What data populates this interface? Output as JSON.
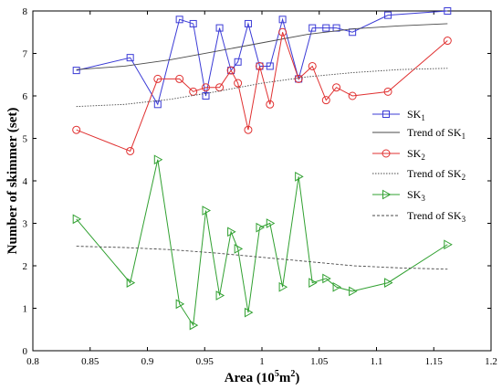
{
  "chart_data": {
    "type": "line",
    "xlabel": "Area (10",
    "xlabel_sup": "5",
    "xlabel_unit": "m",
    "xlabel_unit_sup": "2",
    "xlabel_close": ")",
    "ylabel": "Number of skimmer (set)",
    "xlim": [
      0.8,
      1.2
    ],
    "ylim": [
      0,
      8
    ],
    "xticks": [
      "0.8",
      "0.85",
      "0.9",
      "0.95",
      "1",
      "1.05",
      "1.1",
      "1.15",
      "1.2"
    ],
    "yticks": [
      "0",
      "1",
      "2",
      "3",
      "4",
      "5",
      "6",
      "7",
      "8"
    ],
    "legend_position": "right",
    "series": [
      {
        "name": "SK",
        "sub": "1",
        "color": "#3b3bd6",
        "marker": "square",
        "kind": "data",
        "x": [
          0.838,
          0.885,
          0.909,
          0.928,
          0.94,
          0.951,
          0.963,
          0.973,
          0.979,
          0.988,
          0.998,
          1.007,
          1.018,
          1.032,
          1.044,
          1.056,
          1.065,
          1.079,
          1.11,
          1.162
        ],
        "y": [
          6.6,
          6.9,
          5.8,
          7.8,
          7.7,
          6.0,
          7.6,
          6.6,
          6.8,
          7.7,
          6.7,
          6.7,
          7.8,
          6.4,
          7.6,
          7.6,
          7.6,
          7.5,
          7.9,
          8.0
        ]
      },
      {
        "name": "Trend of SK",
        "sub": "1",
        "color": "#4a4a4a",
        "marker": "none",
        "kind": "trend-solid",
        "x": [
          0.838,
          0.88,
          0.92,
          0.96,
          1.0,
          1.04,
          1.08,
          1.12,
          1.162
        ],
        "y": [
          6.62,
          6.7,
          6.85,
          7.05,
          7.25,
          7.45,
          7.58,
          7.65,
          7.7
        ]
      },
      {
        "name": "SK",
        "sub": "2",
        "color": "#e03030",
        "marker": "circle",
        "kind": "data",
        "x": [
          0.838,
          0.885,
          0.909,
          0.928,
          0.94,
          0.951,
          0.963,
          0.973,
          0.979,
          0.988,
          0.998,
          1.007,
          1.018,
          1.032,
          1.044,
          1.056,
          1.065,
          1.079,
          1.11,
          1.162
        ],
        "y": [
          5.2,
          4.7,
          6.4,
          6.4,
          6.1,
          6.2,
          6.2,
          6.6,
          6.3,
          5.2,
          6.7,
          5.8,
          7.5,
          6.4,
          6.7,
          5.9,
          6.2,
          6.0,
          6.1,
          7.3
        ]
      },
      {
        "name": "Trend of SK",
        "sub": "2",
        "color": "#4a4a4a",
        "marker": "none",
        "kind": "trend-dotted",
        "x": [
          0.838,
          0.88,
          0.92,
          0.96,
          1.0,
          1.04,
          1.08,
          1.12,
          1.162
        ],
        "y": [
          5.75,
          5.8,
          5.92,
          6.1,
          6.3,
          6.45,
          6.55,
          6.62,
          6.65
        ]
      },
      {
        "name": "SK",
        "sub": "3",
        "color": "#30a030",
        "marker": "triangle",
        "kind": "data",
        "x": [
          0.838,
          0.885,
          0.909,
          0.928,
          0.94,
          0.951,
          0.963,
          0.973,
          0.979,
          0.988,
          0.998,
          1.007,
          1.018,
          1.032,
          1.044,
          1.056,
          1.065,
          1.079,
          1.11,
          1.162
        ],
        "y": [
          3.1,
          1.6,
          4.5,
          1.1,
          0.6,
          3.3,
          1.3,
          2.8,
          2.4,
          0.9,
          2.9,
          3.0,
          1.5,
          4.1,
          1.6,
          1.7,
          1.5,
          1.4,
          1.6,
          2.5
        ]
      },
      {
        "name": "Trend of SK",
        "sub": "3",
        "color": "#4a4a4a",
        "marker": "none",
        "kind": "trend-dashed",
        "x": [
          0.838,
          0.88,
          0.92,
          0.96,
          1.0,
          1.04,
          1.08,
          1.12,
          1.162
        ],
        "y": [
          2.46,
          2.43,
          2.38,
          2.3,
          2.2,
          2.1,
          2.0,
          1.95,
          1.92
        ]
      }
    ]
  }
}
